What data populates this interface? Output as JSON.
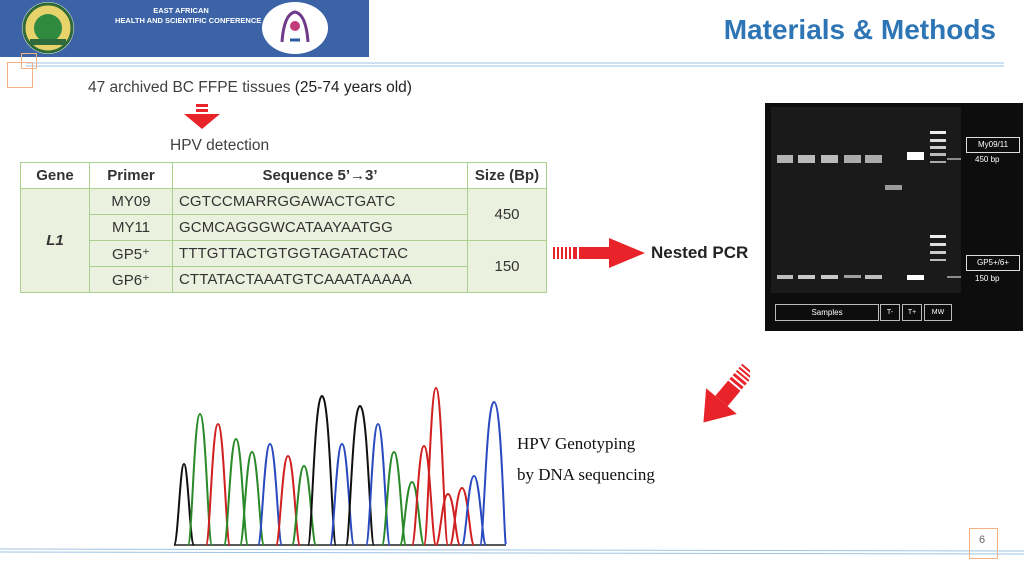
{
  "header": {
    "banner_line1": "EAST AFRICAN",
    "banner_line2": "HEALTH AND SCIENTIFIC CONFERENCE",
    "title": "Materials & Methods"
  },
  "intro": {
    "text": "47 archived BC FFPE tissues ",
    "age": "(25-74 years old)"
  },
  "hpv_detection": "HPV detection",
  "table": {
    "headers": [
      "Gene",
      "Primer",
      "Sequence 5’→3’",
      "Size (Bp)"
    ],
    "gene": "L1",
    "rows": [
      {
        "primer": "MY09",
        "sequence": "CGTCCMARRGGAWACTGATC"
      },
      {
        "primer": "MY11",
        "sequence": "GCMCAGGGWCATAAYAATGG"
      },
      {
        "primer": "GP5⁺",
        "sequence": "TTTGTTACTGTGGTAGATACTAC"
      },
      {
        "primer": "GP6⁺",
        "sequence": "CTTATACTAAATGTCAAATAAAAA"
      }
    ],
    "sizes": [
      "450",
      "150"
    ]
  },
  "nested_pcr": "Nested PCR",
  "gel": {
    "box1": "My09/11",
    "bp1": "450 bp",
    "box2": "GP5+/6+",
    "bp2": "150 bp",
    "samples": "Samples",
    "lane_neg": "T-",
    "lane_pos": "T+",
    "lane_mw": "MW"
  },
  "genotyping": {
    "line1": "HPV Genotyping",
    "line2": "by DNA sequencing"
  },
  "page_number": "6",
  "colors": {
    "title": "#2e75b6",
    "banner": "#3b63a6",
    "arrow": "#e8242a",
    "table_border": "#a9d18e",
    "table_fill": "#ebf1de"
  }
}
